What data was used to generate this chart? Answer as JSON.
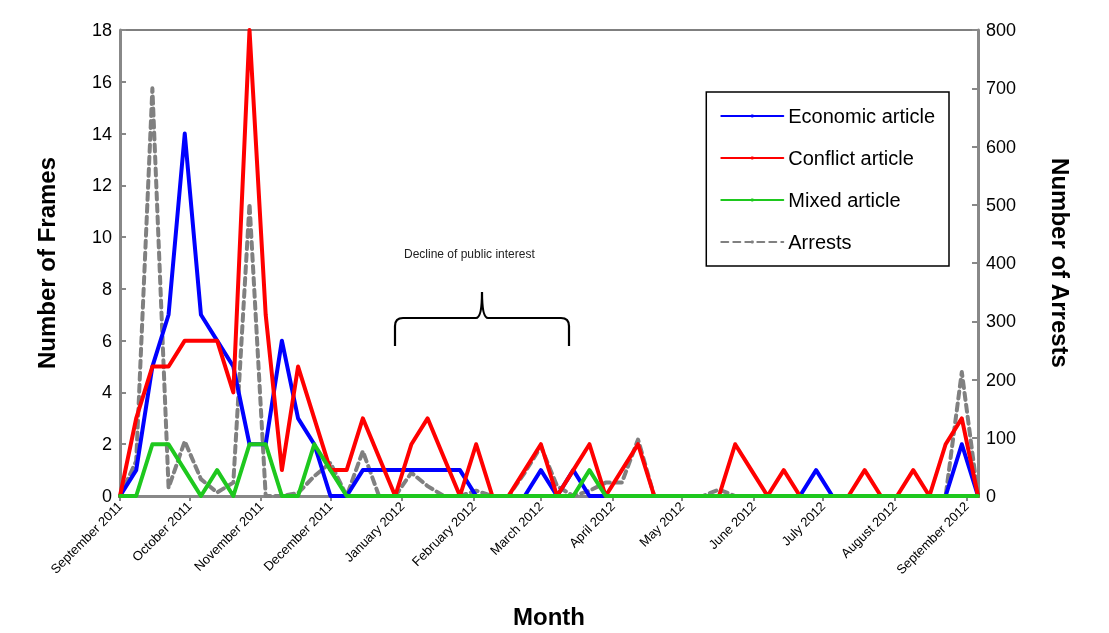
{
  "chart_data": {
    "type": "line",
    "xlabel": "Month",
    "ylabel": "Number of Frames",
    "y2label": "Number of Arrests",
    "x": [
      "2011-09-01",
      "2011-09-08",
      "2011-09-15",
      "2011-09-22",
      "2011-09-29",
      "2011-10-06",
      "2011-10-13",
      "2011-10-20",
      "2011-10-27",
      "2011-11-03",
      "2011-11-10",
      "2011-11-17",
      "2011-11-24",
      "2011-12-01",
      "2011-12-08",
      "2011-12-15",
      "2011-12-22",
      "2011-12-29",
      "2012-01-05",
      "2012-01-12",
      "2012-01-19",
      "2012-01-26",
      "2012-02-02",
      "2012-02-09",
      "2012-02-16",
      "2012-02-23",
      "2012-03-01",
      "2012-03-08",
      "2012-03-15",
      "2012-03-22",
      "2012-03-29",
      "2012-04-05",
      "2012-04-12",
      "2012-04-19",
      "2012-04-26",
      "2012-05-03",
      "2012-05-10",
      "2012-05-17",
      "2012-05-24",
      "2012-05-31",
      "2012-06-07",
      "2012-06-14",
      "2012-06-21",
      "2012-06-28",
      "2012-07-05",
      "2012-07-12",
      "2012-07-19",
      "2012-07-26",
      "2012-08-02",
      "2012-08-09",
      "2012-08-16",
      "2012-08-23",
      "2012-08-30",
      "2012-09-06"
    ],
    "series": [
      {
        "name": "Economic article",
        "color": "#0000ff",
        "line_style": "solid",
        "values": [
          0,
          1,
          5,
          7,
          14,
          7,
          6,
          5,
          2,
          2,
          6,
          3,
          2,
          0,
          0,
          1,
          1,
          1,
          1,
          1,
          1,
          1,
          0,
          0,
          0,
          0,
          1,
          0,
          1,
          0,
          0,
          0,
          0,
          0,
          0,
          0,
          0,
          0,
          0,
          0,
          0,
          0,
          0,
          1,
          0,
          0,
          0,
          0,
          0,
          0,
          0,
          0,
          2,
          0
        ]
      },
      {
        "name": "Conflict article",
        "color": "#ff0000",
        "line_style": "solid",
        "values": [
          0,
          3,
          5,
          5,
          6,
          6,
          6,
          4,
          18,
          7,
          1,
          5,
          3,
          1,
          1,
          3,
          1.5,
          0,
          2,
          3,
          1.5,
          0,
          2,
          0,
          0,
          1,
          2,
          0,
          1,
          2,
          0,
          1,
          2,
          0,
          0,
          0,
          0,
          0,
          2,
          1,
          0,
          1,
          0,
          0,
          0,
          0,
          1,
          0,
          0,
          1,
          0,
          2,
          3,
          0
        ]
      },
      {
        "name": "Mixed article",
        "color": "#1ec81e",
        "line_style": "solid",
        "values": [
          0,
          0,
          2,
          2,
          1,
          0,
          1,
          0,
          2,
          2,
          0,
          0,
          2,
          1,
          0,
          0,
          0,
          0,
          0,
          0,
          0,
          0,
          0,
          0,
          0,
          0,
          0,
          0,
          0,
          1,
          0,
          0,
          0,
          0,
          0,
          0,
          0,
          0,
          0,
          0,
          0,
          0,
          0,
          0,
          0,
          0,
          0,
          0,
          0,
          0,
          0,
          0,
          0,
          0
        ]
      },
      {
        "name": "Arrests",
        "color": "#808080",
        "line_style": "dashed",
        "axis": "y2",
        "values": [
          0,
          60,
          700,
          14,
          94,
          29,
          6,
          23,
          502,
          0,
          0,
          5,
          34,
          57,
          0,
          77,
          0,
          0,
          40,
          17,
          0,
          0,
          9,
          0,
          0,
          40,
          85,
          17,
          0,
          9,
          23,
          23,
          97,
          0,
          0,
          0,
          0,
          11,
          0,
          0,
          0,
          0,
          0,
          0,
          0,
          0,
          0,
          0,
          0,
          0,
          0,
          0,
          213,
          0
        ]
      }
    ],
    "xlim": [
      "2011-09-01",
      "2012-09-06"
    ],
    "xticks": [
      {
        "value": "2011-09-01",
        "label": "September 2011"
      },
      {
        "value": "2011-10-01",
        "label": "October 2011"
      },
      {
        "value": "2011-11-01",
        "label": "November 2011"
      },
      {
        "value": "2011-12-01",
        "label": "December 2011"
      },
      {
        "value": "2012-01-01",
        "label": "January 2012"
      },
      {
        "value": "2012-02-01",
        "label": "February 2012"
      },
      {
        "value": "2012-03-01",
        "label": "March 2012"
      },
      {
        "value": "2012-04-01",
        "label": "April 2012"
      },
      {
        "value": "2012-05-01",
        "label": "May 2012"
      },
      {
        "value": "2012-06-01",
        "label": "June 2012"
      },
      {
        "value": "2012-07-01",
        "label": "July 2012"
      },
      {
        "value": "2012-08-01",
        "label": "August 2012"
      },
      {
        "value": "2012-09-01",
        "label": "September 2012"
      }
    ],
    "ylim": [
      0,
      18
    ],
    "yticks": [
      0,
      2,
      4,
      6,
      8,
      10,
      12,
      14,
      16,
      18
    ],
    "y2lim": [
      0,
      800
    ],
    "y2ticks": [
      0,
      100,
      200,
      300,
      400,
      500,
      600,
      700,
      800
    ],
    "annotations": [
      "Decline of public interest"
    ],
    "legend": "top right",
    "grid": false,
    "marker": "none"
  }
}
